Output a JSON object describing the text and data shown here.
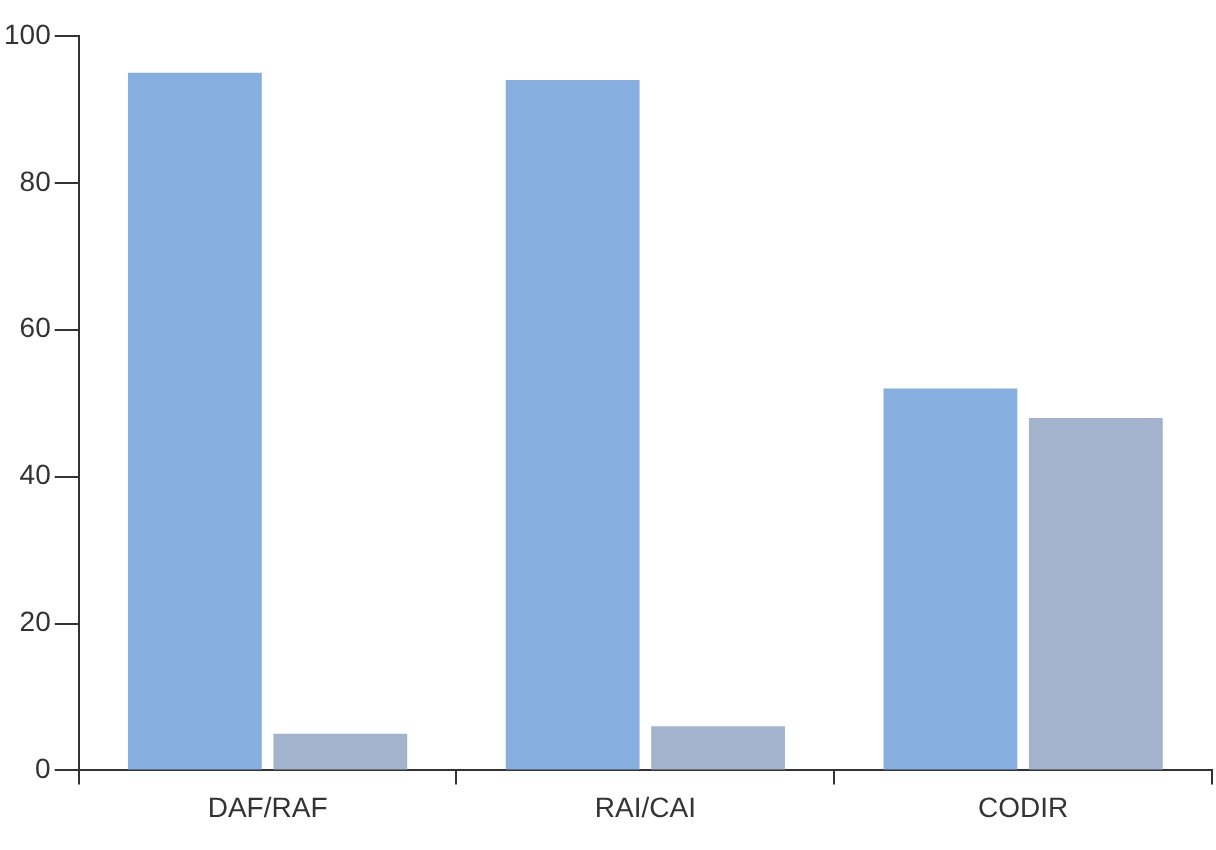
{
  "chart_data": {
    "type": "bar",
    "categories": [
      "DAF/RAF",
      "RAI/CAI",
      "CODIR"
    ],
    "series": [
      {
        "color": "#86afe0",
        "values": [
          95,
          94,
          52
        ]
      },
      {
        "color": "#a3b3cd",
        "values": [
          5,
          6,
          48
        ]
      }
    ],
    "ylim": [
      0,
      100
    ],
    "yticks": [
      0,
      20,
      40,
      60,
      80,
      100
    ],
    "grid": false,
    "legend": false
  }
}
